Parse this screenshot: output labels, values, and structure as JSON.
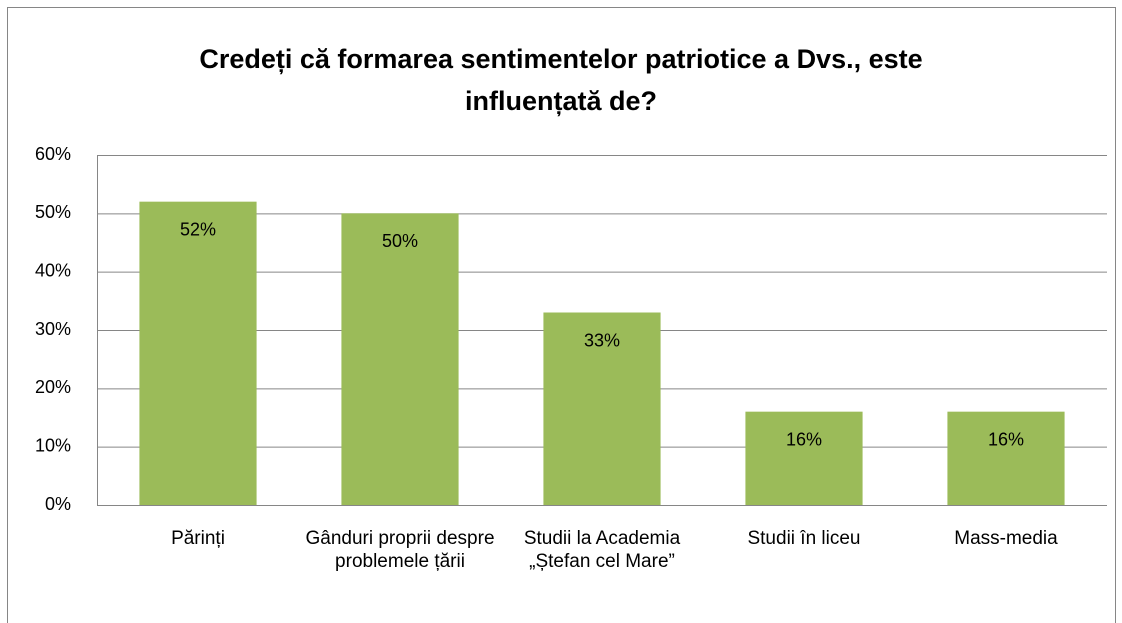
{
  "chart_data": {
    "type": "bar",
    "title": "Credeți că formarea sentimentelor patriotice a Dvs., este influențată de?",
    "categories": [
      "Părinți",
      "Gânduri proprii despre problemele țării",
      "Studii la Academia „Ștefan cel Mare”",
      "Studii în liceu",
      "Mass-media"
    ],
    "values": [
      52,
      50,
      33,
      16,
      16
    ],
    "value_labels": [
      "52%",
      "50%",
      "33%",
      "16%",
      "16%"
    ],
    "color": "#9bbb59",
    "ylim": [
      0,
      60
    ],
    "yticks": [
      {
        "value": 0,
        "label": "0%"
      },
      {
        "value": 10,
        "label": "10%"
      },
      {
        "value": 20,
        "label": "20%"
      },
      {
        "value": 30,
        "label": "30%"
      },
      {
        "value": 40,
        "label": "40%"
      },
      {
        "value": 50,
        "label": "50%"
      },
      {
        "value": 60,
        "label": "60%"
      }
    ],
    "grid": true
  }
}
